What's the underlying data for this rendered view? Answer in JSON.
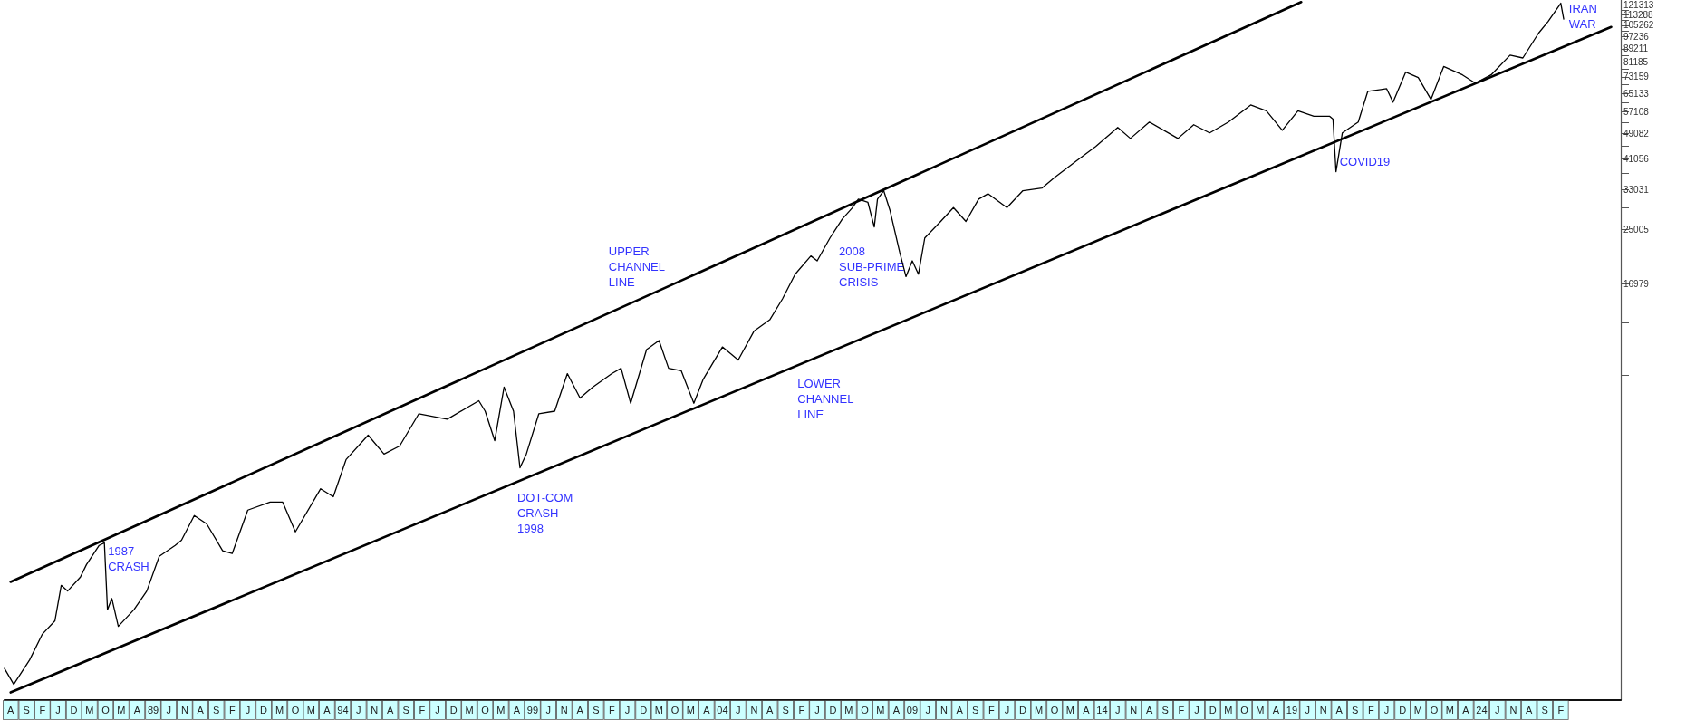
{
  "chart_data": {
    "type": "line",
    "log": "y",
    "marker": "none",
    "xlim": [
      "1985-02",
      "2027-09"
    ],
    "ylim": [
      904,
      125800
    ],
    "xticks": [
      {
        "value": "1985-04",
        "label": "A"
      },
      {
        "value": "1985-09",
        "label": "S"
      },
      {
        "value": "1986-02",
        "label": "F"
      },
      {
        "value": "1986-07",
        "label": "J"
      },
      {
        "value": "1986-12",
        "label": "D"
      },
      {
        "value": "1987-05",
        "label": "M"
      },
      {
        "value": "1987-10",
        "label": "O"
      },
      {
        "value": "1988-03",
        "label": "M"
      },
      {
        "value": "1988-08",
        "label": "A"
      },
      {
        "value": "1989-01",
        "label": "89"
      },
      {
        "value": "1989-06",
        "label": "J"
      },
      {
        "value": "1989-11",
        "label": "N"
      },
      {
        "value": "1990-04",
        "label": "A"
      },
      {
        "value": "1990-09",
        "label": "S"
      },
      {
        "value": "1991-02",
        "label": "F"
      },
      {
        "value": "1991-07",
        "label": "J"
      },
      {
        "value": "1991-12",
        "label": "D"
      },
      {
        "value": "1992-05",
        "label": "M"
      },
      {
        "value": "1992-10",
        "label": "O"
      },
      {
        "value": "1993-03",
        "label": "M"
      },
      {
        "value": "1993-08",
        "label": "A"
      },
      {
        "value": "1994-01",
        "label": "94"
      },
      {
        "value": "1994-06",
        "label": "J"
      },
      {
        "value": "1994-11",
        "label": "N"
      },
      {
        "value": "1995-04",
        "label": "A"
      },
      {
        "value": "1995-09",
        "label": "S"
      },
      {
        "value": "1996-02",
        "label": "F"
      },
      {
        "value": "1996-07",
        "label": "J"
      },
      {
        "value": "1996-12",
        "label": "D"
      },
      {
        "value": "1997-05",
        "label": "M"
      },
      {
        "value": "1997-10",
        "label": "O"
      },
      {
        "value": "1998-03",
        "label": "M"
      },
      {
        "value": "1998-08",
        "label": "A"
      },
      {
        "value": "1999-01",
        "label": "99"
      },
      {
        "value": "1999-06",
        "label": "J"
      },
      {
        "value": "1999-11",
        "label": "N"
      },
      {
        "value": "2000-04",
        "label": "A"
      },
      {
        "value": "2000-09",
        "label": "S"
      },
      {
        "value": "2001-02",
        "label": "F"
      },
      {
        "value": "2001-07",
        "label": "J"
      },
      {
        "value": "2001-12",
        "label": "D"
      },
      {
        "value": "2002-05",
        "label": "M"
      },
      {
        "value": "2002-10",
        "label": "O"
      },
      {
        "value": "2003-03",
        "label": "M"
      },
      {
        "value": "2003-08",
        "label": "A"
      },
      {
        "value": "2004-01",
        "label": "04"
      },
      {
        "value": "2004-06",
        "label": "J"
      },
      {
        "value": "2004-11",
        "label": "N"
      },
      {
        "value": "2005-04",
        "label": "A"
      },
      {
        "value": "2005-09",
        "label": "S"
      },
      {
        "value": "2006-02",
        "label": "F"
      },
      {
        "value": "2006-07",
        "label": "J"
      },
      {
        "value": "2006-12",
        "label": "D"
      },
      {
        "value": "2007-05",
        "label": "M"
      },
      {
        "value": "2007-10",
        "label": "O"
      },
      {
        "value": "2008-03",
        "label": "M"
      },
      {
        "value": "2008-08",
        "label": "A"
      },
      {
        "value": "2009-01",
        "label": "09"
      },
      {
        "value": "2009-06",
        "label": "J"
      },
      {
        "value": "2009-11",
        "label": "N"
      },
      {
        "value": "2010-04",
        "label": "A"
      },
      {
        "value": "2010-09",
        "label": "S"
      },
      {
        "value": "2011-02",
        "label": "F"
      },
      {
        "value": "2011-07",
        "label": "J"
      },
      {
        "value": "2011-12",
        "label": "D"
      },
      {
        "value": "2012-05",
        "label": "M"
      },
      {
        "value": "2012-10",
        "label": "O"
      },
      {
        "value": "2013-03",
        "label": "M"
      },
      {
        "value": "2013-08",
        "label": "A"
      },
      {
        "value": "2014-01",
        "label": "14"
      },
      {
        "value": "2014-06",
        "label": "J"
      },
      {
        "value": "2014-11",
        "label": "N"
      },
      {
        "value": "2015-04",
        "label": "A"
      },
      {
        "value": "2015-09",
        "label": "S"
      },
      {
        "value": "2016-02",
        "label": "F"
      },
      {
        "value": "2016-07",
        "label": "J"
      },
      {
        "value": "2016-12",
        "label": "D"
      },
      {
        "value": "2017-05",
        "label": "M"
      },
      {
        "value": "2017-10",
        "label": "O"
      },
      {
        "value": "2018-03",
        "label": "M"
      },
      {
        "value": "2018-08",
        "label": "A"
      },
      {
        "value": "2019-01",
        "label": "19"
      },
      {
        "value": "2019-06",
        "label": "J"
      },
      {
        "value": "2019-11",
        "label": "N"
      },
      {
        "value": "2020-04",
        "label": "A"
      },
      {
        "value": "2020-09",
        "label": "S"
      },
      {
        "value": "2021-02",
        "label": "F"
      },
      {
        "value": "2021-07",
        "label": "J"
      },
      {
        "value": "2021-12",
        "label": "D"
      },
      {
        "value": "2022-05",
        "label": "M"
      },
      {
        "value": "2022-10",
        "label": "O"
      },
      {
        "value": "2023-03",
        "label": "M"
      },
      {
        "value": "2023-08",
        "label": "A"
      },
      {
        "value": "2024-01",
        "label": "24"
      },
      {
        "value": "2024-06",
        "label": "J"
      },
      {
        "value": "2024-11",
        "label": "N"
      },
      {
        "value": "2025-04",
        "label": "A"
      },
      {
        "value": "2025-09",
        "label": "S"
      },
      {
        "value": "2026-02",
        "label": "F"
      }
    ],
    "yticks": [
      {
        "value": 8953,
        "label": null
      },
      {
        "value": 12966,
        "label": null
      },
      16979,
      {
        "value": 20992,
        "label": null
      },
      25005,
      {
        "value": 29018,
        "label": null
      },
      33031,
      {
        "value": 37044,
        "label": null
      },
      41056,
      {
        "value": 45069,
        "label": null
      },
      49082,
      {
        "value": 53095,
        "label": null
      },
      57108,
      {
        "value": 61121,
        "label": null
      },
      65133,
      {
        "value": 69146,
        "label": null
      },
      73159,
      {
        "value": 77172,
        "label": null
      },
      81185,
      {
        "value": 85198,
        "label": null
      },
      89211,
      {
        "value": 93224,
        "label": null
      },
      97236,
      {
        "value": 101249,
        "label": null
      },
      105262,
      {
        "value": 109275,
        "label": null
      },
      113288,
      {
        "value": 117300,
        "label": null
      },
      121313
    ],
    "series": [
      {
        "color": "#000000",
        "x": [
          "1985-02",
          "1985-05",
          "1985-10",
          "1986-02",
          "1986-06",
          "1986-08",
          "1986-10",
          "1987-02",
          "1987-04",
          "1987-08",
          "1987-09-20",
          "1987-10-20",
          "1987-12",
          "1988-02",
          "1988-07",
          "1988-11",
          "1989-03",
          "1989-08",
          "1989-10",
          "1990-02",
          "1990-06",
          "1990-11",
          "1991-02",
          "1991-07",
          "1992-02",
          "1992-06",
          "1992-10",
          "1993-06",
          "1993-10",
          "1994-02",
          "1994-09",
          "1995-02",
          "1995-07",
          "1996-01",
          "1996-10",
          "1997-08",
          "1997-10",
          "1998-01",
          "1998-04",
          "1998-07",
          "1998-09",
          "1998-11",
          "1999-03",
          "1999-08",
          "1999-12",
          "2000-04",
          "2000-08",
          "2001-02",
          "2001-05",
          "2001-08",
          "2002-01",
          "2002-05",
          "2002-08",
          "2002-12",
          "2003-04",
          "2003-07",
          "2004-01",
          "2004-06",
          "2004-11",
          "2005-04",
          "2005-08",
          "2005-12",
          "2006-05",
          "2006-07",
          "2006-11",
          "2007-03",
          "2007-06",
          "2007-08",
          "2007-11",
          "2008-01",
          "2008-02",
          "2008-04",
          "2008-06",
          "2008-09",
          "2008-11",
          "2009-01",
          "2009-03",
          "2009-05",
          "2009-10",
          "2010-02",
          "2010-06",
          "2010-10",
          "2011-01",
          "2011-07",
          "2011-12",
          "2012-06",
          "2012-10",
          "2013-05",
          "2013-11",
          "2014-06",
          "2014-10",
          "2015-04",
          "2016-01",
          "2016-06",
          "2016-11",
          "2017-05",
          "2017-12",
          "2018-05",
          "2018-10",
          "2019-03",
          "2019-08",
          "2020-01",
          "2020-02",
          "2020-03",
          "2020-05",
          "2020-10",
          "2021-01",
          "2021-07",
          "2021-09",
          "2022-01",
          "2022-05",
          "2022-09",
          "2023-01",
          "2023-07",
          "2023-11",
          "2024-04",
          "2024-10",
          "2025-02",
          "2025-07",
          "2025-10",
          "2026-02",
          "2026-03"
        ],
        "values": [
          1130,
          1010,
          1200,
          1440,
          1580,
          2030,
          1950,
          2150,
          2350,
          2690,
          2740,
          1710,
          1850,
          1520,
          1710,
          1950,
          2490,
          2690,
          2790,
          3320,
          3130,
          2590,
          2540,
          3450,
          3650,
          3650,
          2960,
          4010,
          3790,
          4930,
          5850,
          5120,
          5420,
          6800,
          6550,
          7460,
          6930,
          5630,
          8210,
          6930,
          4650,
          5120,
          6800,
          6930,
          9030,
          7600,
          8210,
          9030,
          9380,
          7330,
          10700,
          11400,
          9380,
          9210,
          7330,
          8690,
          10900,
          9940,
          12200,
          13200,
          15300,
          18200,
          20700,
          20000,
          23500,
          26900,
          29000,
          30900,
          30200,
          25400,
          30900,
          32800,
          28500,
          21300,
          17900,
          20000,
          18200,
          23500,
          26400,
          29100,
          26400,
          30900,
          32100,
          29100,
          32800,
          33400,
          36000,
          40500,
          44800,
          51200,
          47400,
          53200,
          47400,
          52200,
          49300,
          53200,
          60000,
          57600,
          50200,
          57600,
          55400,
          55400,
          54300,
          37500,
          49300,
          53200,
          66100,
          67300,
          61200,
          75700,
          72800,
          62400,
          78700,
          74200,
          70000,
          74200,
          85300,
          83600,
          99500,
          108000,
          123000,
          110000
        ]
      },
      {
        "color": "#000000",
        "x": [
          "1985-04",
          "2019-04"
        ],
        "values": [
          2080,
          124000
        ]
      },
      {
        "color": "#000000",
        "x": [
          "1985-04",
          "2027-06"
        ],
        "values": [
          954,
          104000
        ]
      }
    ],
    "annotations": [
      {
        "text": "1987\nCRASH",
        "x": "1987-09-20",
        "y": 2740
      },
      {
        "text": "DOT-COM\nCRASH\n1998",
        "x": "1998-09",
        "y": 4650
      },
      {
        "text": "UPPER\nCHANNEL\nLINE",
        "x": "2001-01",
        "y": 13810
      },
      {
        "text": "LOWER\nCHANNEL\nLINE",
        "x": "2006-01",
        "y": 9600
      },
      {
        "text": "2008\nSUB-PRIME\nCRISIS",
        "x": "2008-11",
        "y": 17900
      },
      {
        "text": "COVID19",
        "x": "2020-03",
        "y": 37500
      },
      {
        "text": "IRAN\nWAR",
        "x": "2026-02",
        "y": 123000
      }
    ]
  }
}
